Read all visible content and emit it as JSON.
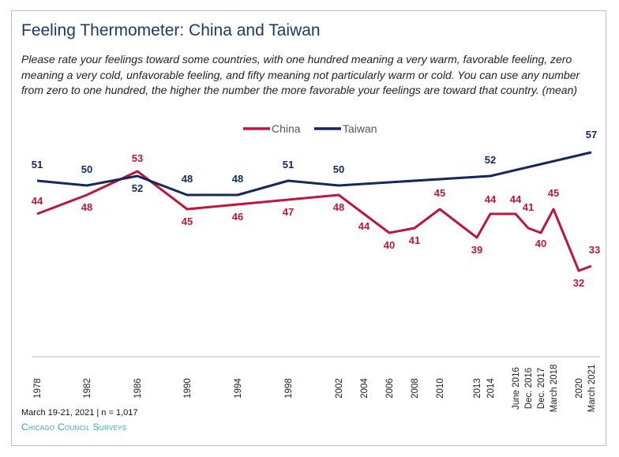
{
  "title": "Feeling Thermometer: China and Taiwan",
  "subtitle": "Please rate your feelings toward some countries, with one hundred meaning a very warm, favorable feeling, zero meaning a very cold, unfavorable feeling, and fifty meaning not particularly warm or cold. You can use any number from zero to one hundred, the higher the number the more favorable your feelings are toward that country. (mean)",
  "footer": {
    "note": "March 19-21, 2021 | n = 1,017",
    "brand": "Chicago Council Surveys"
  },
  "colors": {
    "china": "#c0163a",
    "taiwan": "#14295a"
  },
  "chart_data": {
    "type": "line",
    "title": "Feeling Thermometer: China and Taiwan",
    "categories": [
      "1978",
      "1982",
      "1986",
      "1990",
      "1994",
      "1998",
      "2002",
      "2004",
      "2006",
      "2008",
      "2010",
      "2013",
      "2014",
      "June 2016",
      "Dec. 2016",
      "Dec. 2017",
      "March 2018",
      "2020",
      "March 2021"
    ],
    "series": [
      {
        "name": "China",
        "values": [
          44,
          48,
          53,
          45,
          null,
          null,
          48,
          44,
          40,
          41,
          45,
          39,
          44,
          44,
          41,
          40,
          45,
          32,
          33
        ],
        "labels": [
          "44",
          "48",
          "53",
          "45",
          "46",
          "47",
          "48",
          "44",
          "40",
          "41",
          "45",
          "39",
          "44",
          "44",
          "41",
          "40",
          "45",
          "32",
          "33"
        ]
      },
      {
        "name": "Taiwan",
        "values": [
          51,
          50,
          52,
          48,
          48,
          51,
          50,
          null,
          null,
          null,
          null,
          null,
          52,
          null,
          null,
          null,
          null,
          null,
          57
        ],
        "labels": [
          "51",
          "50",
          "52",
          "48",
          "48",
          "51",
          "50",
          "",
          "",
          "",
          "",
          "",
          "52",
          "",
          "",
          "",
          "",
          "",
          "57"
        ]
      }
    ],
    "legend": {
      "position": "top-center",
      "entries": [
        "China",
        "Taiwan"
      ]
    }
  }
}
